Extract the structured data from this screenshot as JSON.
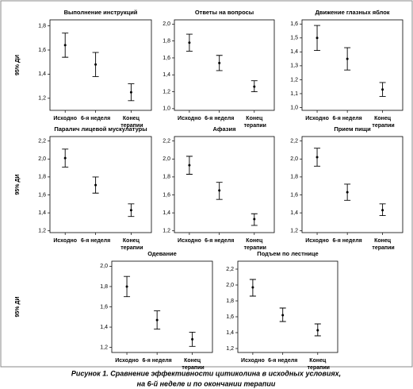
{
  "chart_data": [
    {
      "type": "errorbar",
      "title": "Выполнение инструкций",
      "ylabel": "95% ДИ",
      "categories": [
        "Исходно",
        "6-я неделя",
        "Конец терапии"
      ],
      "values": [
        1.64,
        1.48,
        1.25
      ],
      "lower": [
        1.54,
        1.38,
        1.18
      ],
      "upper": [
        1.74,
        1.58,
        1.32
      ],
      "color": "#000000",
      "ylim": [
        1.1,
        1.85
      ],
      "yticks": [
        {
          "value": 1.2,
          "label": "1,2"
        },
        {
          "value": 1.4,
          "label": "1,4"
        },
        {
          "value": 1.6,
          "label": "1,6"
        },
        {
          "value": 1.8,
          "label": "1,8"
        }
      ]
    },
    {
      "type": "errorbar",
      "title": "Ответы на вопросы",
      "categories": [
        "Исходно",
        "6-я неделя",
        "Конец терапии"
      ],
      "values": [
        1.78,
        1.54,
        1.26
      ],
      "lower": [
        1.68,
        1.45,
        1.2
      ],
      "upper": [
        1.88,
        1.63,
        1.33
      ],
      "color": "#000000",
      "ylim": [
        0.98,
        2.05
      ],
      "yticks": [
        {
          "value": 1.0,
          "label": "1,0"
        },
        {
          "value": 1.2,
          "label": "1,2"
        },
        {
          "value": 1.4,
          "label": "1,4"
        },
        {
          "value": 1.6,
          "label": "1,6"
        },
        {
          "value": 1.8,
          "label": "1,8"
        },
        {
          "value": 2.0,
          "label": "2,0"
        }
      ]
    },
    {
      "type": "errorbar",
      "title": "Движение глазных яблок",
      "categories": [
        "Исходно",
        "6-я неделя",
        "Конец терапии"
      ],
      "values": [
        1.5,
        1.35,
        1.13
      ],
      "lower": [
        1.41,
        1.27,
        1.08
      ],
      "upper": [
        1.59,
        1.43,
        1.18
      ],
      "color": "#000000",
      "ylim": [
        0.98,
        1.63
      ],
      "yticks": [
        {
          "value": 1.0,
          "label": "1,0"
        },
        {
          "value": 1.1,
          "label": "1,1"
        },
        {
          "value": 1.2,
          "label": "1,2"
        },
        {
          "value": 1.3,
          "label": "1,3"
        },
        {
          "value": 1.4,
          "label": "1,4"
        },
        {
          "value": 1.5,
          "label": "1,5"
        },
        {
          "value": 1.6,
          "label": "1,6"
        }
      ]
    },
    {
      "type": "errorbar",
      "title": "Паралич лицевой мускулатуры",
      "ylabel": "95% ДИ",
      "categories": [
        "Исходно",
        "6-я неделя",
        "Конец терапии"
      ],
      "values": [
        2.01,
        1.71,
        1.43
      ],
      "lower": [
        1.91,
        1.62,
        1.36
      ],
      "upper": [
        2.11,
        1.8,
        1.5
      ],
      "color": "#000000",
      "ylim": [
        1.18,
        2.25
      ],
      "yticks": [
        {
          "value": 1.2,
          "label": "1,2"
        },
        {
          "value": 1.4,
          "label": "1,4"
        },
        {
          "value": 1.6,
          "label": "1,6"
        },
        {
          "value": 1.8,
          "label": "1,8"
        },
        {
          "value": 2.0,
          "label": "2,0"
        },
        {
          "value": 2.2,
          "label": "2,2"
        }
      ]
    },
    {
      "type": "errorbar",
      "title": "Афазия",
      "categories": [
        "Исходно",
        "6-я неделя",
        "Конец терапии"
      ],
      "values": [
        1.93,
        1.65,
        1.33
      ],
      "lower": [
        1.83,
        1.55,
        1.26
      ],
      "upper": [
        2.03,
        1.74,
        1.39
      ],
      "color": "#000000",
      "ylim": [
        1.18,
        2.25
      ],
      "yticks": [
        {
          "value": 1.2,
          "label": "1,2"
        },
        {
          "value": 1.4,
          "label": "1,4"
        },
        {
          "value": 1.6,
          "label": "1,6"
        },
        {
          "value": 1.8,
          "label": "1,8"
        },
        {
          "value": 2.0,
          "label": "2,0"
        },
        {
          "value": 2.2,
          "label": "2,2"
        }
      ]
    },
    {
      "type": "errorbar",
      "title": "Прием пищи",
      "categories": [
        "Исходно",
        "6-я неделя",
        "Конец терапии"
      ],
      "values": [
        2.02,
        1.63,
        1.43
      ],
      "lower": [
        1.92,
        1.54,
        1.37
      ],
      "upper": [
        2.12,
        1.72,
        1.5
      ],
      "color": "#000000",
      "ylim": [
        1.18,
        2.25
      ],
      "yticks": [
        {
          "value": 1.2,
          "label": "1,2"
        },
        {
          "value": 1.4,
          "label": "1,4"
        },
        {
          "value": 1.6,
          "label": "1,6"
        },
        {
          "value": 1.8,
          "label": "1,8"
        },
        {
          "value": 2.0,
          "label": "2,0"
        },
        {
          "value": 2.2,
          "label": "2,2"
        }
      ]
    },
    {
      "type": "errorbar",
      "title": "Одевание",
      "ylabel": "95% ДИ",
      "categories": [
        "Исходно",
        "6-я неделя",
        "Конец терапии"
      ],
      "values": [
        1.8,
        1.47,
        1.28
      ],
      "lower": [
        1.7,
        1.38,
        1.21
      ],
      "upper": [
        1.9,
        1.56,
        1.35
      ],
      "color": "#000000",
      "ylim": [
        1.15,
        2.05
      ],
      "yticks": [
        {
          "value": 1.2,
          "label": "1,2"
        },
        {
          "value": 1.4,
          "label": "1,4"
        },
        {
          "value": 1.6,
          "label": "1,6"
        },
        {
          "value": 1.8,
          "label": "1,8"
        },
        {
          "value": 2.0,
          "label": "2,0"
        }
      ]
    },
    {
      "type": "errorbar",
      "title": "Подъем по лестнице",
      "categories": [
        "Исходно",
        "6-я неделя",
        "Конец терапии"
      ],
      "values": [
        1.97,
        1.62,
        1.43
      ],
      "lower": [
        1.86,
        1.54,
        1.36
      ],
      "upper": [
        2.07,
        1.71,
        1.51
      ],
      "color": "#000000",
      "ylim": [
        1.15,
        2.3
      ],
      "yticks": [
        {
          "value": 1.2,
          "label": "1,2"
        },
        {
          "value": 1.4,
          "label": "1,4"
        },
        {
          "value": 1.6,
          "label": "1,6"
        },
        {
          "value": 1.8,
          "label": "1,8"
        },
        {
          "value": 2.0,
          "label": "2,0"
        },
        {
          "value": 2.2,
          "label": "2,2"
        }
      ]
    }
  ],
  "caption": [
    "Рисунок 1. Сравнение эффективности цитиколина в исходных условиях,",
    "на 6-й неделе и по окончании терапии"
  ]
}
